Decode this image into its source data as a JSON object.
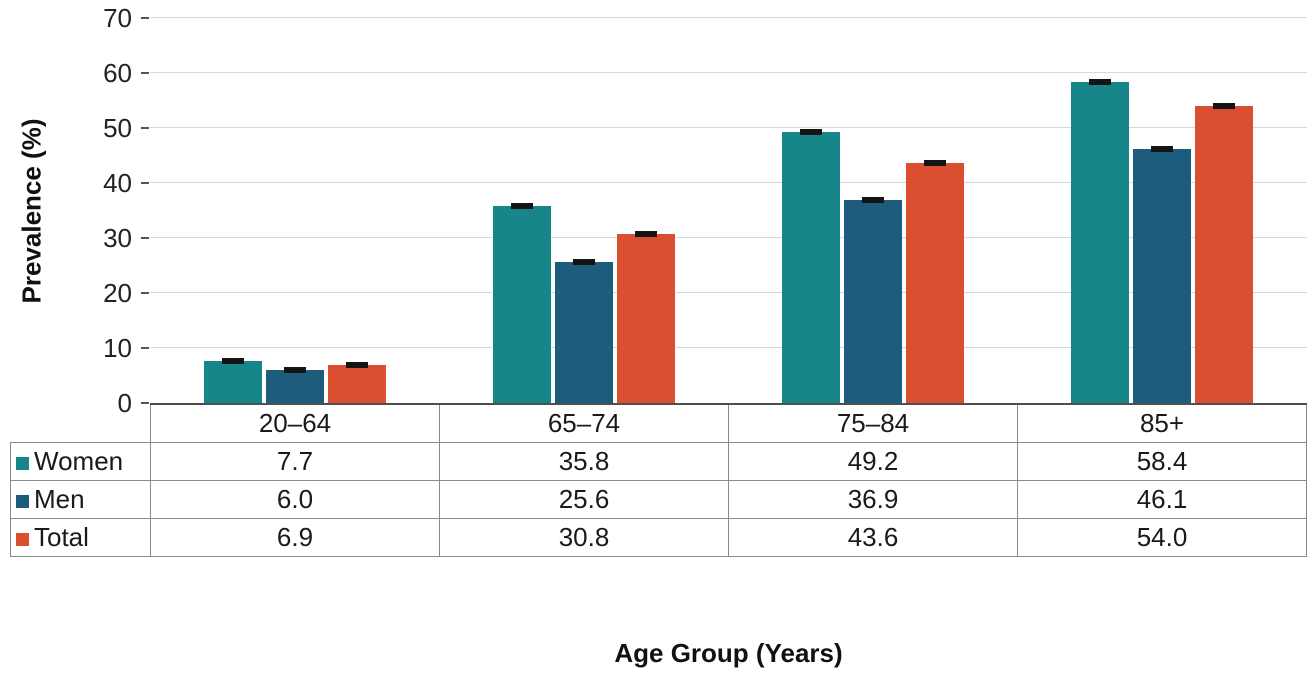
{
  "chart_data": {
    "type": "bar",
    "title": "",
    "xlabel": "Age Group (Years)",
    "ylabel": "Prevalence (%)",
    "ylim": [
      0,
      70
    ],
    "yticks": [
      0,
      10,
      20,
      30,
      40,
      50,
      60,
      70
    ],
    "grid": true,
    "error_bars": true,
    "data_table": true,
    "legend_position": "table-left",
    "value_format": "one-decimal",
    "categories": [
      "20–64",
      "65–74",
      "75–84",
      "85+"
    ],
    "series": [
      {
        "name": "Women",
        "color": "#17868a",
        "values": [
          7.7,
          35.8,
          49.2,
          58.4
        ]
      },
      {
        "name": "Men",
        "color": "#1e5c7d",
        "values": [
          6.0,
          25.6,
          36.9,
          46.1
        ]
      },
      {
        "name": "Total",
        "color": "#d94f2f",
        "values": [
          6.9,
          30.8,
          43.6,
          54.0
        ]
      }
    ],
    "colors": {
      "error_bar": "#141414",
      "gridline": "#d8d8d8",
      "axis_line": "#4f4f4f"
    }
  }
}
